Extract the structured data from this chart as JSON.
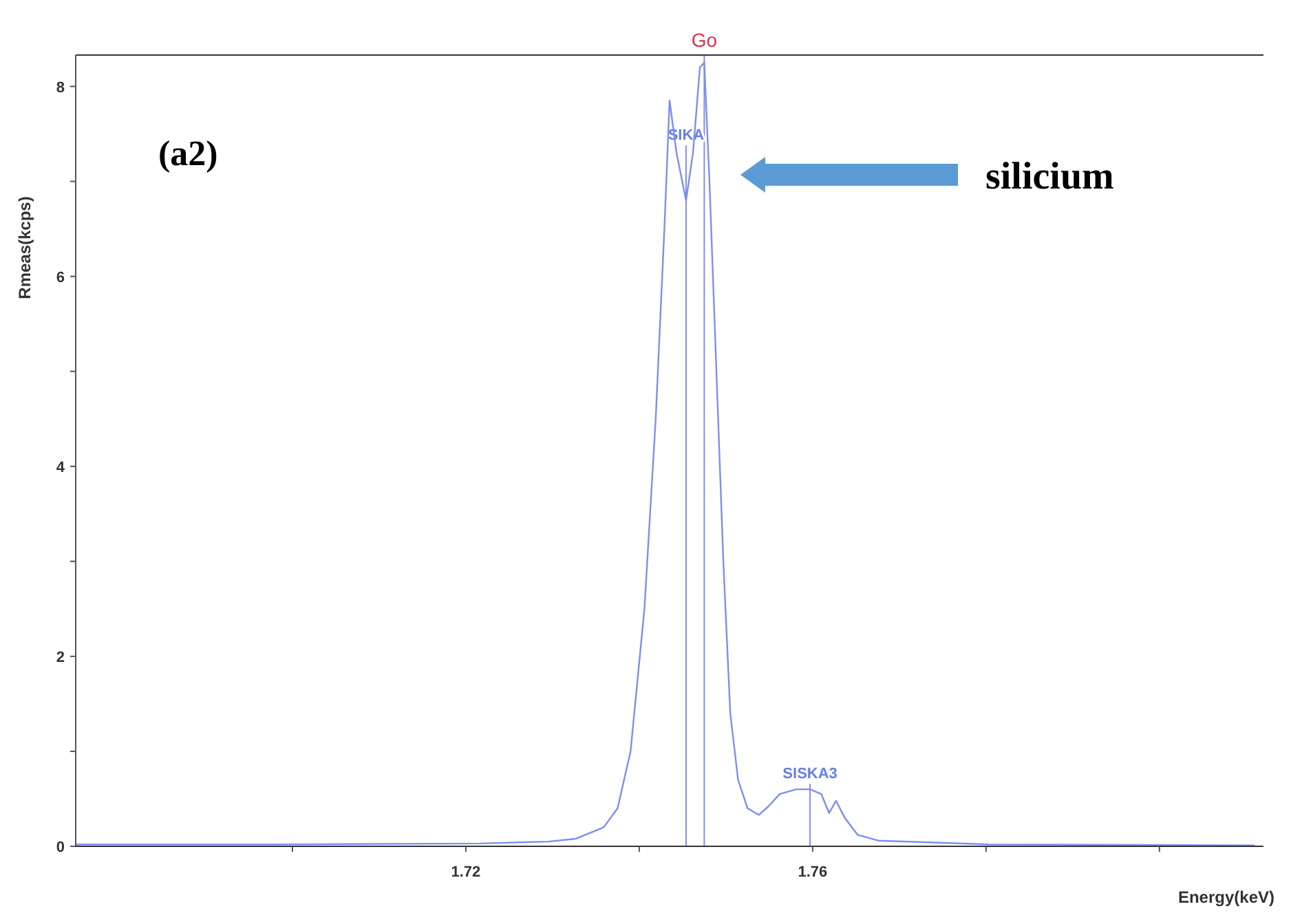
{
  "chart_data": {
    "type": "line",
    "xlabel": "Energy(keV)",
    "ylabel": "Rmeas(kcps)",
    "xlim": [
      1.675,
      1.812
    ],
    "ylim": [
      0,
      8.33
    ],
    "xticks": [
      {
        "value": 1.7,
        "label": null
      },
      1.72,
      {
        "value": 1.74,
        "label": null
      },
      1.76,
      {
        "value": 1.78,
        "label": null
      },
      {
        "value": 1.8,
        "label": null
      }
    ],
    "yticks": [
      0,
      {
        "value": 1,
        "label": null
      },
      2,
      {
        "value": 3,
        "label": null
      },
      4,
      {
        "value": 5,
        "label": null
      },
      6,
      {
        "value": 7,
        "label": null
      },
      8
    ],
    "grid": false,
    "marker": "none",
    "line_style": "solid",
    "series": [
      {
        "color": "#7d8ef0",
        "x": [
          1.675,
          1.6978,
          1.7216,
          1.7295,
          1.7327,
          1.7359,
          1.7375,
          1.739,
          1.7406,
          1.7419,
          1.7429,
          1.7435,
          1.7443,
          1.7454,
          1.7462,
          1.747,
          1.7475,
          1.7481,
          1.7489,
          1.7497,
          1.7505,
          1.7514,
          1.7525,
          1.7538,
          1.7549,
          1.7562,
          1.7581,
          1.7597,
          1.761,
          1.7619,
          1.7627,
          1.7637,
          1.7652,
          1.7676,
          1.774,
          1.7803,
          1.811
        ],
        "values": [
          0.02,
          0.02,
          0.03,
          0.05,
          0.08,
          0.2,
          0.4,
          1.0,
          2.5,
          4.5,
          6.5,
          7.85,
          7.3,
          6.8,
          7.3,
          8.2,
          8.25,
          7.0,
          5.0,
          3.0,
          1.4,
          0.7,
          0.4,
          0.33,
          0.42,
          0.55,
          0.6,
          0.6,
          0.55,
          0.35,
          0.48,
          0.3,
          0.12,
          0.06,
          0.04,
          0.02,
          0.01
        ]
      }
    ],
    "ref_lines": [
      {
        "axis": "x",
        "value": 1.7475,
        "label": "Go",
        "color": "#7d8ef0"
      },
      {
        "axis": "x",
        "value": 1.7454,
        "label": "SIKA",
        "color": "#7d8ef0"
      },
      {
        "axis": "x",
        "value": 1.7597,
        "label": "SISKA3",
        "color": "#7d8ef0"
      }
    ],
    "annotations": [
      "(a2)",
      "silicium"
    ]
  }
}
